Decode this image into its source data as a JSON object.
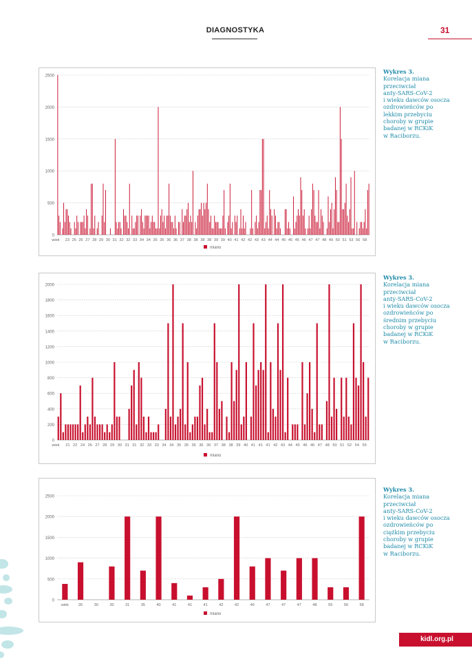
{
  "header": {
    "section": "DIAGNOSTYKA",
    "page_number": "31"
  },
  "footer": {
    "site": "kidl.org.pl"
  },
  "colors": {
    "accent": "#c8102e",
    "bar": "#c8102e",
    "caption": "#1d8aa8"
  },
  "captions": [
    {
      "title": "Wykres 3.",
      "body": "Korelacja miana\nprzeciwciał\nanty-SARS-CoV-2\ni wieku dawców osocza\nozdrowieńców po\nlekkim przebyciu\nchoroby w grupie\nbadanej w RCKiK\nw Raciborzu."
    },
    {
      "title": "Wykres 3.",
      "body": "Korelacja miana\nprzeciwciał\nanty-SARS-CoV-2\ni wieku dawców osocza\nozdrowieńców po\nśrednim przebyciu\nchoroby w grupie\nbadanej w RCKiK\nw Raciborzu."
    },
    {
      "title": "Wykres 3.",
      "body": "Korelacja miana\nprzeciwciał\nanty-SARS-CoV-2\ni wieku dawców osocza\nozdrowieńców po\nciężkim przebyciu\nchoroby w grupie\nbadanej w RCKiK\nw Raciborzu."
    }
  ],
  "chart_data": [
    {
      "type": "bar",
      "title": "",
      "ylim": [
        0,
        2500
      ],
      "yticks": [
        0,
        500,
        1000,
        1500,
        2000,
        2500
      ],
      "grid": true,
      "legend": {
        "position": "bottom",
        "entries": [
          "miano"
        ]
      },
      "x_first_label": "wiek",
      "x_tick_labels": [
        "23",
        "25",
        "26",
        "27",
        "28",
        "29",
        "30",
        "31",
        "32",
        "32",
        "33",
        "34",
        "34",
        "35",
        "35",
        "36",
        "36",
        "37",
        "38",
        "38",
        "38",
        "38",
        "39",
        "39",
        "40",
        "41",
        "42",
        "42",
        "43",
        "43",
        "44",
        "44",
        "45",
        "45",
        "45",
        "46",
        "47",
        "47",
        "48",
        "49",
        "50",
        "51",
        "53",
        "56",
        "58"
      ],
      "series": [
        {
          "name": "miano",
          "values": [
            2500,
            300,
            200,
            0,
            100,
            500,
            200,
            400,
            400,
            300,
            200,
            100,
            0,
            0,
            200,
            100,
            300,
            200,
            0,
            200,
            200,
            200,
            300,
            100,
            400,
            300,
            0,
            100,
            800,
            800,
            100,
            300,
            0,
            100,
            200,
            0,
            0,
            300,
            800,
            200,
            700,
            0,
            0,
            0,
            100,
            0,
            0,
            0,
            1500,
            200,
            100,
            200,
            200,
            100,
            0,
            400,
            300,
            300,
            200,
            100,
            800,
            0,
            300,
            100,
            100,
            200,
            300,
            300,
            0,
            300,
            400,
            200,
            100,
            300,
            300,
            300,
            300,
            100,
            200,
            300,
            200,
            200,
            100,
            100,
            2000,
            100,
            300,
            400,
            200,
            300,
            100,
            300,
            300,
            800,
            300,
            200,
            200,
            100,
            300,
            100,
            0,
            200,
            200,
            0,
            400,
            200,
            300,
            300,
            400,
            500,
            200,
            300,
            200,
            1000,
            0,
            200,
            100,
            300,
            400,
            400,
            500,
            300,
            500,
            400,
            500,
            800,
            400,
            200,
            300,
            100,
            100,
            300,
            200,
            200,
            200,
            100,
            100,
            100,
            300,
            700,
            100,
            0,
            200,
            300,
            800,
            100,
            200,
            0,
            300,
            200,
            300,
            0,
            100,
            400,
            100,
            300,
            100,
            200,
            0,
            0,
            0,
            100,
            700,
            100,
            0,
            200,
            300,
            100,
            200,
            700,
            700,
            1500,
            1500,
            100,
            200,
            300,
            100,
            700,
            400,
            300,
            0,
            400,
            300,
            100,
            200,
            200,
            100,
            0,
            0,
            0,
            400,
            400,
            100,
            200,
            100,
            0,
            0,
            600,
            100,
            200,
            300,
            400,
            300,
            900,
            700,
            300,
            400,
            100,
            0,
            100,
            300,
            100,
            400,
            800,
            700,
            300,
            200,
            200,
            700,
            100,
            400,
            300,
            200,
            0,
            0,
            100,
            600,
            200,
            400,
            500,
            100,
            400,
            900,
            700,
            200,
            200,
            2000,
            1500,
            400,
            400,
            500,
            800,
            300,
            200,
            400,
            900,
            100,
            100,
            1000,
            0,
            200,
            0,
            100,
            200,
            200,
            100,
            200,
            400,
            100,
            700,
            800
          ]
        }
      ]
    },
    {
      "type": "bar",
      "title": "",
      "ylim": [
        0,
        2000
      ],
      "yticks": [
        0,
        200,
        400,
        600,
        800,
        1000,
        1200,
        1400,
        1600,
        1800,
        2000
      ],
      "grid": true,
      "legend": {
        "position": "bottom",
        "entries": [
          "miano"
        ]
      },
      "x_first_label": "wiek",
      "x_tick_labels": [
        "21",
        "22",
        "24",
        "26",
        "27",
        "28",
        "29",
        "30",
        "31",
        "31",
        "32",
        "33",
        "33",
        "34",
        "34",
        "35",
        "35",
        "36",
        "36",
        "36",
        "37",
        "38",
        "38",
        "39",
        "40",
        "41",
        "41",
        "41",
        "42",
        "43",
        "44",
        "45",
        "46",
        "46",
        "47",
        "48",
        "50",
        "51",
        "52",
        "54",
        "59"
      ],
      "series": [
        {
          "name": "miano",
          "values": [
            300,
            600,
            100,
            200,
            200,
            200,
            200,
            200,
            200,
            700,
            100,
            200,
            300,
            200,
            800,
            300,
            200,
            200,
            200,
            100,
            200,
            100,
            200,
            1000,
            300,
            300,
            0,
            0,
            0,
            400,
            700,
            900,
            200,
            1000,
            800,
            300,
            100,
            300,
            100,
            100,
            100,
            200,
            0,
            0,
            400,
            1500,
            300,
            2000,
            200,
            300,
            400,
            1500,
            200,
            1000,
            100,
            200,
            300,
            300,
            700,
            800,
            200,
            400,
            100,
            100,
            1500,
            1000,
            400,
            500,
            0,
            300,
            100,
            1000,
            500,
            900,
            2000,
            200,
            300,
            1000,
            0,
            300,
            1500,
            700,
            900,
            1000,
            900,
            2000,
            100,
            1000,
            400,
            300,
            1500,
            900,
            2000,
            100,
            800,
            0,
            200,
            200,
            200,
            0,
            1000,
            200,
            600,
            1000,
            400,
            100,
            1500,
            200,
            200,
            0,
            500,
            2000,
            300,
            800,
            400,
            0,
            800,
            300,
            800,
            300,
            200,
            1500,
            800,
            700,
            2000,
            1000,
            300,
            800
          ]
        }
      ]
    },
    {
      "type": "bar",
      "title": "",
      "ylim": [
        0,
        2500
      ],
      "yticks": [
        0,
        500,
        1000,
        1500,
        2000,
        2500
      ],
      "grid": true,
      "legend": {
        "position": "bottom",
        "entries": [
          "miano"
        ]
      },
      "categories": [
        "wiek",
        "26",
        "30",
        "30",
        "31",
        "35",
        "40",
        "41",
        "41",
        "41",
        "42",
        "42",
        "46",
        "47",
        "47",
        "47",
        "48",
        "55",
        "56",
        "58"
      ],
      "series": [
        {
          "name": "miano",
          "values": [
            380,
            900,
            0,
            800,
            2000,
            700,
            2000,
            400,
            100,
            300,
            500,
            2000,
            800,
            1000,
            700,
            1000,
            1000,
            300,
            300,
            2000
          ]
        }
      ]
    }
  ]
}
